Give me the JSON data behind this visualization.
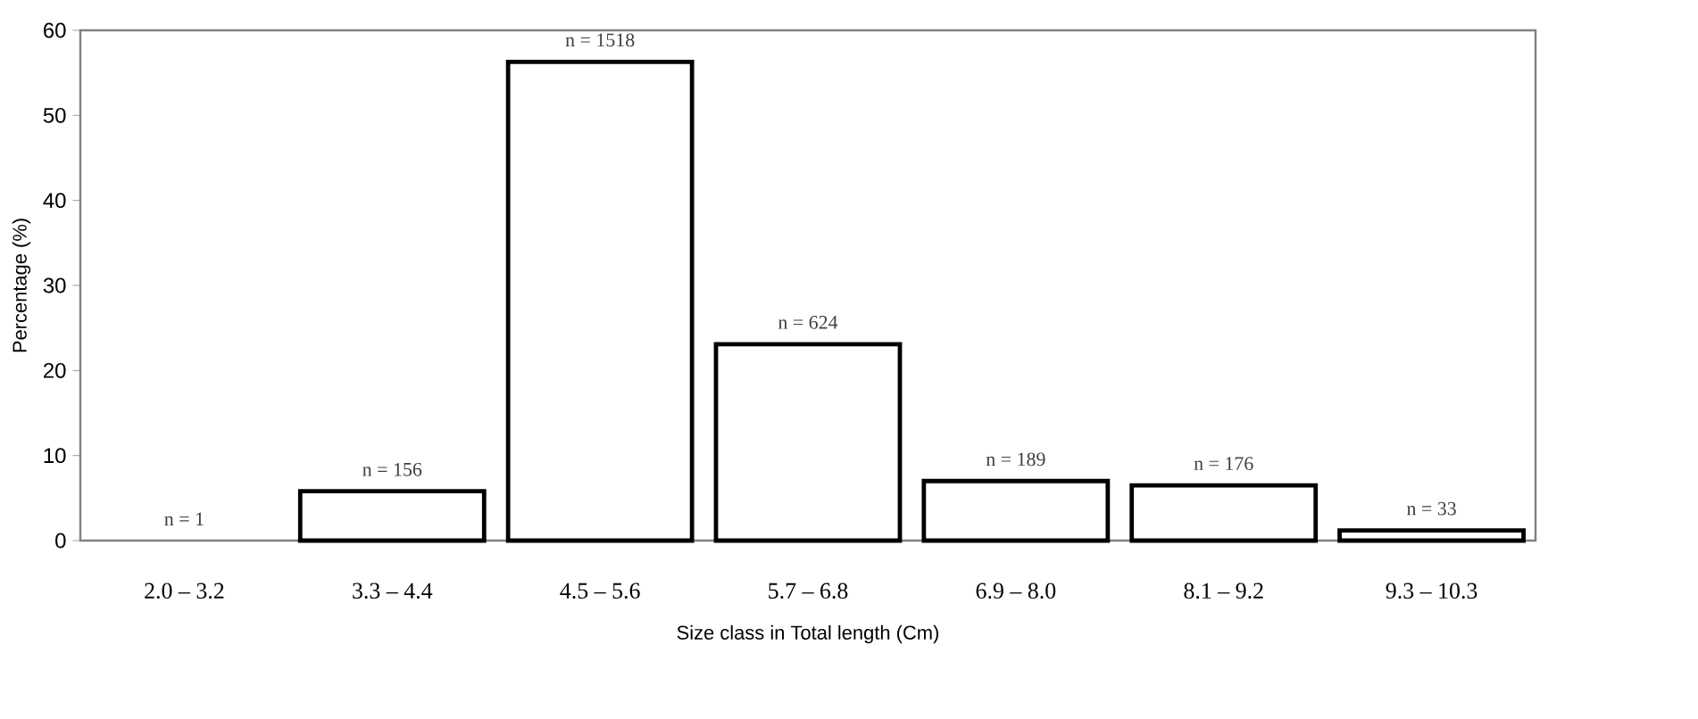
{
  "chart_data": {
    "type": "bar",
    "categories": [
      "2.0 – 3.2",
      "3.3 – 4.4",
      "4.5 – 5.6",
      "5.7 – 6.8",
      "6.9 – 8.0",
      "8.1 – 9.2",
      "9.3 – 10.3"
    ],
    "values": [
      0,
      5.8,
      56.3,
      23.1,
      7.0,
      6.5,
      1.2
    ],
    "color": "#ffffff",
    "ylim": [
      0,
      60
    ],
    "yticks": [
      0,
      10,
      20,
      30,
      40,
      50,
      60
    ],
    "xlabel": "Size class in Total length (Cm)",
    "ylabel": "Percentage (%)",
    "annotations": [
      {
        "text": "n = 1",
        "x": "2.0 – 3.2",
        "y": 0
      },
      {
        "text": "n = 156",
        "x": "3.3 – 4.4",
        "y": 5.8
      },
      {
        "text": "n = 1518",
        "x": "4.5 – 5.6",
        "y": 56.3
      },
      {
        "text": "n = 624",
        "x": "5.7 – 6.8",
        "y": 23.1
      },
      {
        "text": "n = 189",
        "x": "6.9 – 8.0",
        "y": 7.0
      },
      {
        "text": "n = 176",
        "x": "8.1 – 9.2",
        "y": 6.5
      },
      {
        "text": "n = 33",
        "x": "9.3 – 10.3",
        "y": 1.2
      }
    ]
  }
}
